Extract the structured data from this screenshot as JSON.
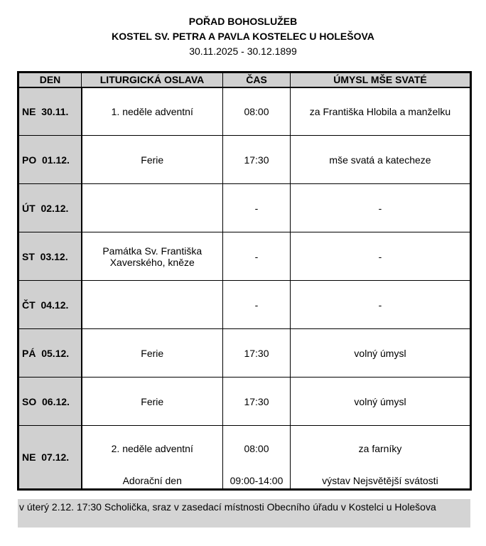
{
  "title": "POŘAD BOHOSLUŽEB",
  "subtitle": "KOSTEL SV. PETRA A PAVLA KOSTELEC U HOLEŠOVA",
  "date_range": "30.11.2025 - 30.12.1899",
  "headers": [
    "DEN",
    "LITURGICKÁ OSLAVA",
    "ČAS",
    "ÚMYSL MŠE SVATÉ"
  ],
  "rows": [
    {
      "day": "NE  30.11.",
      "celebration": "1. neděle adventní",
      "time": "08:00",
      "intention": "za Františka Hlobila a manželku"
    },
    {
      "day": "PO  01.12.",
      "celebration": "Ferie",
      "time": "17:30",
      "intention": "mše svatá a katecheze"
    },
    {
      "day": "ÚT  02.12.",
      "celebration": "",
      "time": "-",
      "intention": "-"
    },
    {
      "day": "ST  03.12.",
      "celebration": "Památka Sv. Františka Xaverského, kněze",
      "time": "-",
      "intention": "-"
    },
    {
      "day": "ČT  04.12.",
      "celebration": "",
      "time": "-",
      "intention": "-"
    },
    {
      "day": "PÁ  05.12.",
      "celebration": "Ferie",
      "time": "17:30",
      "intention": "volný úmysl"
    },
    {
      "day": "SO  06.12.",
      "celebration": "Ferie",
      "time": "17:30",
      "intention": "volný úmysl"
    }
  ],
  "last_row": {
    "day": "NE  07.12.",
    "celebration": [
      "2. neděle adventní",
      "Adorační den"
    ],
    "time": [
      "08:00",
      "09:00-14:00"
    ],
    "intention": [
      "za farníky",
      "výstav Nejsvětější svátosti"
    ]
  },
  "note": "v úterý 2.12. 17:30 Scholička, sraz v zasedací místnosti Obecního úřadu v Kostelci u Holešova"
}
